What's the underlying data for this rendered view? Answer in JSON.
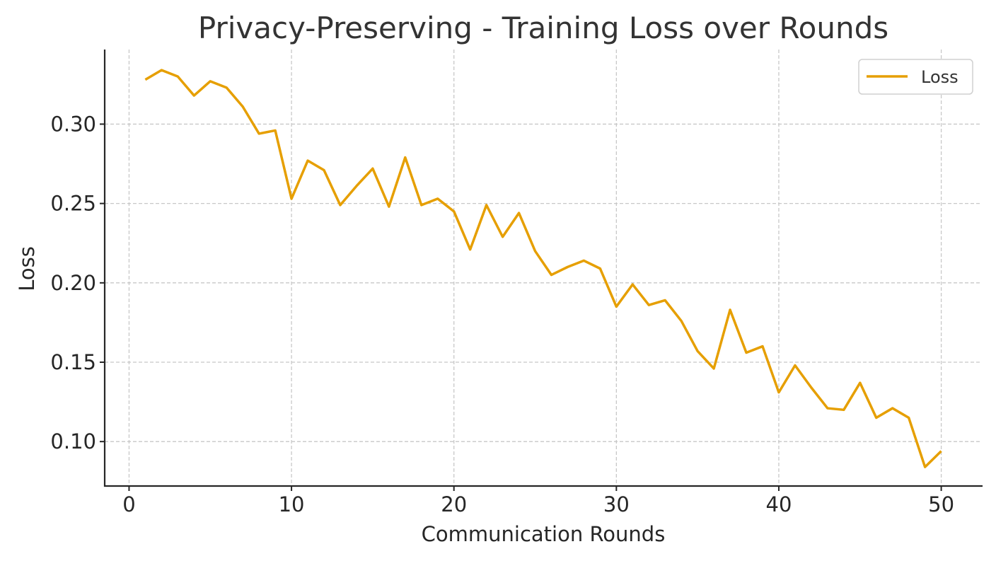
{
  "chart_data": {
    "type": "line",
    "title": "Privacy-Preserving - Training Loss over Rounds",
    "xlabel": "Communication Rounds",
    "ylabel": "Loss",
    "xlim": [
      -1.5,
      52.5
    ],
    "ylim": [
      0.072,
      0.347
    ],
    "xticks": [
      0,
      10,
      20,
      30,
      40,
      50
    ],
    "xtick_labels": [
      "0",
      "10",
      "20",
      "30",
      "40",
      "50"
    ],
    "yticks": [
      0.1,
      0.15,
      0.2,
      0.25,
      0.3
    ],
    "ytick_labels": [
      "0.10",
      "0.15",
      "0.20",
      "0.25",
      "0.30"
    ],
    "grid": true,
    "legend_position": "top-right",
    "series": [
      {
        "name": "Loss",
        "color": "#e69f00",
        "x": [
          1,
          2,
          3,
          4,
          5,
          6,
          7,
          8,
          9,
          10,
          11,
          12,
          13,
          14,
          15,
          16,
          17,
          18,
          19,
          20,
          21,
          22,
          23,
          24,
          25,
          26,
          27,
          28,
          29,
          30,
          31,
          32,
          33,
          34,
          35,
          36,
          37,
          38,
          39,
          40,
          41,
          42,
          43,
          44,
          45,
          46,
          47,
          48,
          49,
          50
        ],
        "y": [
          0.328,
          0.334,
          0.33,
          0.318,
          0.327,
          0.323,
          0.311,
          0.294,
          0.296,
          0.253,
          0.277,
          0.271,
          0.249,
          0.261,
          0.272,
          0.248,
          0.279,
          0.249,
          0.253,
          0.245,
          0.221,
          0.249,
          0.229,
          0.244,
          0.22,
          0.205,
          0.21,
          0.214,
          0.209,
          0.185,
          0.199,
          0.186,
          0.189,
          0.176,
          0.157,
          0.146,
          0.183,
          0.156,
          0.16,
          0.131,
          0.148,
          0.134,
          0.121,
          0.12,
          0.137,
          0.115,
          0.121,
          0.115,
          0.084,
          0.094
        ]
      }
    ]
  }
}
